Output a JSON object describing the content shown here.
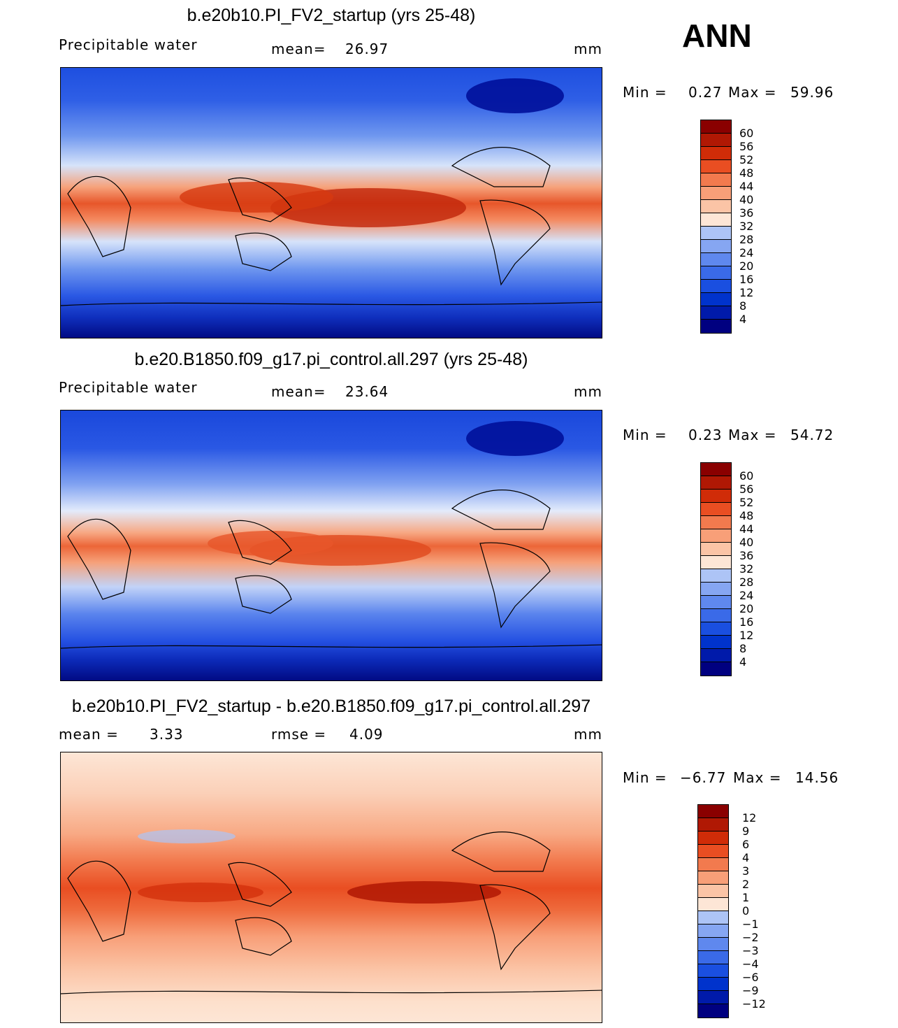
{
  "season": "ANN",
  "panels": [
    {
      "title": "b.e20b10.PI_FV2_startup (yrs 25-48)",
      "left_label": "Precipitable water",
      "stat_label": "mean=",
      "stat_value": "26.97",
      "stat2_label": "",
      "stat2_value": "",
      "units": "mm",
      "min_label": "Min =",
      "min_value": "0.27",
      "max_label": "Max =",
      "max_value": "59.96",
      "colorbar_labels": [
        "60",
        "56",
        "52",
        "48",
        "44",
        "40",
        "36",
        "32",
        "28",
        "24",
        "20",
        "16",
        "12",
        "8",
        "4"
      ]
    },
    {
      "title": "b.e20.B1850.f09_g17.pi_control.all.297 (yrs 25-48)",
      "left_label": "Precipitable water",
      "stat_label": "mean=",
      "stat_value": "23.64",
      "stat2_label": "",
      "stat2_value": "",
      "units": "mm",
      "min_label": "Min =",
      "min_value": "0.23",
      "max_label": "Max =",
      "max_value": "54.72",
      "colorbar_labels": [
        "60",
        "56",
        "52",
        "48",
        "44",
        "40",
        "36",
        "32",
        "28",
        "24",
        "20",
        "16",
        "12",
        "8",
        "4"
      ]
    },
    {
      "title": "b.e20b10.PI_FV2_startup - b.e20.B1850.f09_g17.pi_control.all.297",
      "left_label": "mean =",
      "stat_label": "",
      "stat_value": "3.33",
      "stat2_label": "rmse =",
      "stat2_value": "4.09",
      "units": "mm",
      "min_label": "Min =",
      "min_value": "−6.77",
      "max_label": "Max =",
      "max_value": "14.56",
      "colorbar_labels": [
        "12",
        "9",
        "6",
        "4",
        "3",
        "2",
        "1",
        "0",
        "−1",
        "−2",
        "−3",
        "−4",
        "−6",
        "−9",
        "−12"
      ]
    }
  ],
  "colors": {
    "palette": [
      "#000080",
      "#001aaa",
      "#0033cc",
      "#1a4fe0",
      "#3a6ae8",
      "#5f88ee",
      "#86a6f2",
      "#adc4f6",
      "#d6e3fa",
      "#fde6d6",
      "#fbc4a6",
      "#f89f78",
      "#f27a4e",
      "#e94e22",
      "#d02c08",
      "#b01804",
      "#8a0000"
    ]
  }
}
